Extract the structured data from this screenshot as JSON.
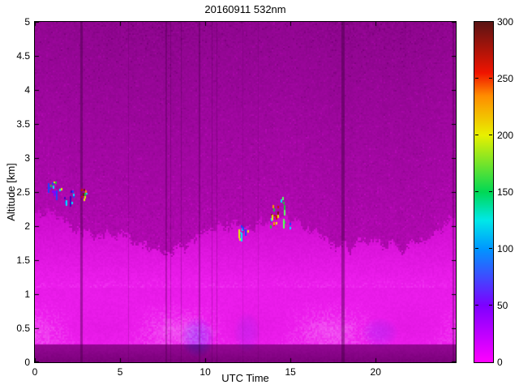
{
  "chart_data": {
    "type": "heatmap",
    "title": "20160911 532nm",
    "xlabel": "UTC Time",
    "ylabel": "Altitude [km]",
    "x_range": [
      0,
      24.7
    ],
    "y_range": [
      0,
      5
    ],
    "x_ticks": [
      0,
      5,
      10,
      15,
      20
    ],
    "y_ticks": [
      0,
      0.5,
      1,
      1.5,
      2,
      2.5,
      3,
      3.5,
      4,
      4.5,
      5
    ],
    "legend_position": "right-colorbar",
    "grid": false,
    "colorbar": {
      "range": [
        0,
        300
      ],
      "ticks": [
        0,
        50,
        100,
        150,
        200,
        250,
        300
      ],
      "stops": [
        [
          0,
          "#FF00FF"
        ],
        [
          50,
          "#7D00FF"
        ],
        [
          100,
          "#0096FF"
        ],
        [
          125,
          "#00E8E8"
        ],
        [
          150,
          "#00D855"
        ],
        [
          200,
          "#E8F000"
        ],
        [
          235,
          "#FF8C00"
        ],
        [
          255,
          "#F01400"
        ],
        [
          300,
          "#5A1414"
        ]
      ]
    },
    "field_model": {
      "seed": 42,
      "boundary_km": {
        "base": 1.9,
        "amp1": 0.22,
        "freq1": 0.5,
        "ph1": 1.1,
        "amp2": 0.08,
        "freq2": 1.3,
        "ph2": 0.8,
        "col_jitter": 0.13
      },
      "surface_band_top_km": 0.27,
      "bright_top_km": 1.1,
      "intensity_colormap": [
        [
          0.12,
          "#500050"
        ],
        [
          0.25,
          "#780078"
        ],
        [
          0.36,
          "#8E068E"
        ],
        [
          0.55,
          "#A808A8"
        ],
        [
          0.75,
          "#CC0CCC"
        ],
        [
          0.95,
          "#EE1EEE"
        ],
        [
          1.1,
          "#F9A4F9"
        ]
      ]
    },
    "gap_lines": [
      {
        "t": 2.76,
        "w": 3,
        "alpha": 0.4
      },
      {
        "t": 5.5,
        "w": 1,
        "alpha": 0.18
      },
      {
        "t": 7.72,
        "w": 2,
        "alpha": 0.3
      },
      {
        "t": 7.98,
        "w": 1,
        "alpha": 0.25
      },
      {
        "t": 8.6,
        "w": 1,
        "alpha": 0.25
      },
      {
        "t": 9.65,
        "w": 2,
        "alpha": 0.32
      },
      {
        "t": 10.38,
        "w": 1,
        "alpha": 0.25
      },
      {
        "t": 10.68,
        "w": 1,
        "alpha": 0.25
      },
      {
        "t": 12.2,
        "w": 1,
        "alpha": 0.12
      },
      {
        "t": 13.1,
        "w": 1,
        "alpha": 0.12
      },
      {
        "t": 18.07,
        "w": 4,
        "alpha": 0.42
      },
      {
        "t": 24.55,
        "w": 2,
        "alpha": 0.35
      }
    ],
    "cloud_clusters": [
      {
        "t": 1.15,
        "z": 2.57,
        "t_span": 0.8,
        "z_span": 0.22,
        "dots": 10,
        "streaks": 3,
        "palette": [
          "#00E5FF",
          "#2040FF",
          "#E8F000",
          "#20C040",
          "#8000FF"
        ]
      },
      {
        "t": 1.95,
        "z": 2.45,
        "t_span": 0.7,
        "z_span": 0.2,
        "dots": 8,
        "streaks": 2,
        "palette": [
          "#2040FF",
          "#00E5FF",
          "#4000C0"
        ]
      },
      {
        "t": 2.72,
        "z": 2.47,
        "t_span": 0.55,
        "z_span": 0.16,
        "dots": 9,
        "streaks": 0,
        "palette": [
          "#801010",
          "#D01000",
          "#E8F000",
          "#20C040",
          "#00E5FF",
          "#FF9000"
        ]
      },
      {
        "t": 12.2,
        "z": 1.87,
        "t_span": 0.5,
        "z_span": 0.3,
        "dots": 7,
        "streaks": 3,
        "palette": [
          "#00E5FF",
          "#2040FF",
          "#E8F000"
        ]
      },
      {
        "t": 14.0,
        "z": 2.15,
        "t_span": 0.5,
        "z_span": 0.32,
        "dots": 13,
        "streaks": 2,
        "palette": [
          "#D01000",
          "#E8F000",
          "#20C040",
          "#00E5FF",
          "#801010",
          "#FF9000"
        ]
      },
      {
        "t": 14.55,
        "z": 2.25,
        "t_span": 0.25,
        "z_span": 0.38,
        "dots": 5,
        "streaks": 3,
        "palette": [
          "#20C040",
          "#00E5FF",
          "#60FF60"
        ]
      },
      {
        "t": 15.0,
        "z": 2.0,
        "t_span": 0.15,
        "z_span": 0.1,
        "dots": 2,
        "streaks": 0,
        "palette": [
          "#00E5FF",
          "#2040FF"
        ]
      }
    ],
    "blue_patches": [
      {
        "t": 9.5,
        "z": 0.38,
        "rt": 1.0,
        "rz": 0.3,
        "strength": 0.45
      },
      {
        "t": 12.4,
        "z": 0.45,
        "rt": 0.8,
        "rz": 0.3,
        "strength": 0.2
      },
      {
        "t": 20.2,
        "z": 0.45,
        "rt": 1.1,
        "rz": 0.22,
        "strength": 0.25
      }
    ]
  }
}
